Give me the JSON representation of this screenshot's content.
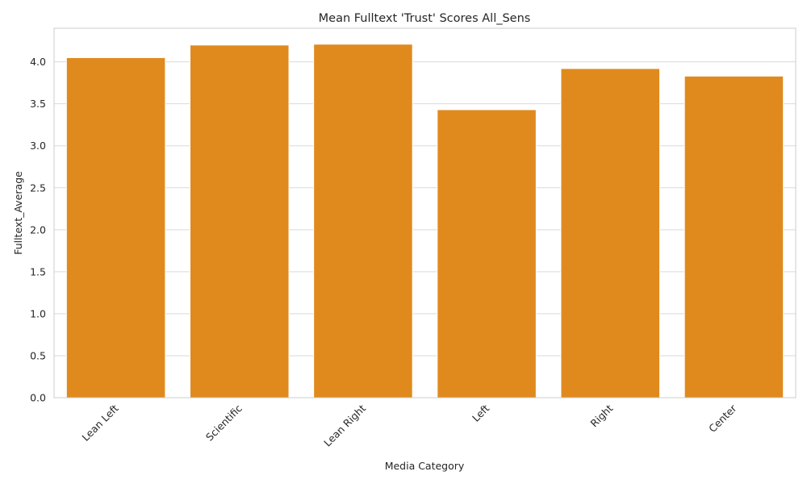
{
  "chart_data": {
    "type": "bar",
    "title": "Mean Fulltext 'Trust' Scores All_Sens",
    "xlabel": "Media Category",
    "ylabel": "Fulltext_Average",
    "categories": [
      "Lean Left",
      "Scientific",
      "Lean Right",
      "Left",
      "Right",
      "Center"
    ],
    "values": [
      4.05,
      4.2,
      4.21,
      3.43,
      3.92,
      3.83
    ],
    "ylim": [
      0,
      4.4
    ],
    "yticks": [
      0.0,
      0.5,
      1.0,
      1.5,
      2.0,
      2.5,
      3.0,
      3.5,
      4.0
    ],
    "ytick_labels": [
      "0.0",
      "0.5",
      "1.0",
      "1.5",
      "2.0",
      "2.5",
      "3.0",
      "3.5",
      "4.0"
    ],
    "grid": "horizontal",
    "bar_color": "#e08a1e",
    "tick_label_rotation_deg": -45
  }
}
